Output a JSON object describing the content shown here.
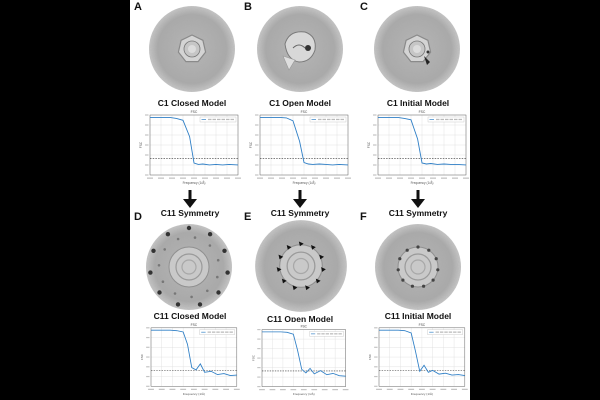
{
  "figure": {
    "top_row": [
      {
        "letter": "A",
        "title": "C1 Closed Model",
        "style": "closed"
      },
      {
        "letter": "B",
        "title": "C1 Open Model",
        "style": "open"
      },
      {
        "letter": "C",
        "title": "C1 Initial Model",
        "style": "initial"
      }
    ],
    "symmetry_label": "C11 Symmetry",
    "bottom_row": [
      {
        "letter": "D",
        "title": "C11 Closed Model",
        "style": "c11closed"
      },
      {
        "letter": "E",
        "title": "C11 Open Model",
        "style": "c11open"
      },
      {
        "letter": "F",
        "title": "C11 Initial Model",
        "style": "c11initial"
      }
    ]
  },
  "chart_data": [
    {
      "type": "line",
      "title": "FSC",
      "xlabel": "Frequency (1/Å)",
      "ylabel": "FSC",
      "x": [
        0.0,
        0.03,
        0.06,
        0.09,
        0.12,
        0.15,
        0.18,
        0.2,
        0.22,
        0.24,
        0.27,
        0.3,
        0.33,
        0.36,
        0.4
      ],
      "series": [
        {
          "values": [
            1.0,
            1.0,
            1.0,
            1.0,
            0.98,
            0.94,
            0.6,
            0.05,
            0.02,
            0.03,
            0.01,
            0.02,
            0.01,
            0.02,
            0.01
          ]
        }
      ],
      "ylim": [
        -0.2,
        1.05
      ],
      "threshold": 0.143
    },
    {
      "type": "line",
      "title": "FSC",
      "xlabel": "Frequency (1/Å)",
      "ylabel": "FSC",
      "x": [
        0.0,
        0.03,
        0.06,
        0.09,
        0.12,
        0.15,
        0.18,
        0.2,
        0.22,
        0.24,
        0.27,
        0.3,
        0.33,
        0.36,
        0.4
      ],
      "series": [
        {
          "values": [
            1.0,
            1.0,
            1.0,
            1.0,
            0.99,
            0.93,
            0.5,
            0.06,
            0.03,
            0.02,
            0.03,
            0.02,
            0.01,
            0.02,
            0.01
          ]
        }
      ],
      "ylim": [
        -0.2,
        1.05
      ],
      "threshold": 0.143
    },
    {
      "type": "line",
      "title": "FSC",
      "xlabel": "Frequency (1/Å)",
      "ylabel": "FSC",
      "x": [
        0.0,
        0.03,
        0.06,
        0.09,
        0.12,
        0.15,
        0.18,
        0.2,
        0.22,
        0.24,
        0.27,
        0.3,
        0.33,
        0.36,
        0.4
      ],
      "series": [
        {
          "values": [
            1.0,
            1.0,
            1.0,
            1.0,
            0.98,
            0.95,
            0.55,
            0.05,
            0.03,
            0.04,
            0.02,
            0.03,
            0.02,
            0.02,
            0.01
          ]
        }
      ],
      "ylim": [
        -0.2,
        1.05
      ],
      "threshold": 0.143
    },
    {
      "type": "line",
      "title": "FSC",
      "xlabel": "Frequency (1/Å)",
      "ylabel": "FSC",
      "x": [
        0.0,
        0.03,
        0.06,
        0.09,
        0.12,
        0.15,
        0.17,
        0.19,
        0.21,
        0.23,
        0.25,
        0.28,
        0.31,
        0.34,
        0.37,
        0.4
      ],
      "series": [
        {
          "values": [
            1.0,
            1.0,
            1.0,
            1.0,
            0.99,
            0.96,
            0.7,
            0.2,
            0.15,
            0.28,
            0.1,
            0.12,
            0.05,
            0.07,
            0.03,
            0.04
          ]
        }
      ],
      "ylim": [
        -0.2,
        1.05
      ],
      "threshold": 0.143
    },
    {
      "type": "line",
      "title": "FSC",
      "xlabel": "Frequency (1/Å)",
      "ylabel": "FSC",
      "x": [
        0.0,
        0.03,
        0.06,
        0.09,
        0.12,
        0.15,
        0.17,
        0.19,
        0.21,
        0.23,
        0.25,
        0.28,
        0.31,
        0.34,
        0.37,
        0.4
      ],
      "series": [
        {
          "values": [
            1.0,
            1.0,
            1.0,
            1.0,
            0.99,
            0.95,
            0.6,
            0.18,
            0.1,
            0.2,
            0.08,
            0.15,
            0.06,
            0.09,
            0.04,
            0.03
          ]
        }
      ],
      "ylim": [
        -0.2,
        1.05
      ],
      "threshold": 0.143
    },
    {
      "type": "line",
      "title": "FSC",
      "xlabel": "Frequency (1/Å)",
      "ylabel": "FSC",
      "x": [
        0.0,
        0.03,
        0.06,
        0.09,
        0.12,
        0.15,
        0.17,
        0.19,
        0.21,
        0.23,
        0.25,
        0.28,
        0.31,
        0.34,
        0.37,
        0.4
      ],
      "series": [
        {
          "values": [
            1.0,
            1.0,
            1.0,
            1.0,
            0.99,
            0.94,
            0.55,
            0.12,
            0.25,
            0.1,
            0.14,
            0.06,
            0.08,
            0.04,
            0.05,
            0.03
          ]
        }
      ],
      "ylim": [
        -0.2,
        1.05
      ],
      "threshold": 0.143
    }
  ]
}
